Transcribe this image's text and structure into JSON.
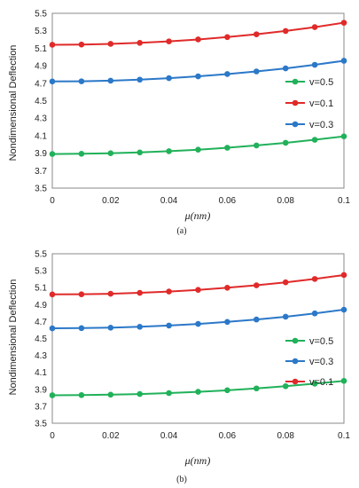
{
  "chart_data": [
    {
      "type": "line",
      "caption": "(a)",
      "ylabel": "Nondimensional Deflection",
      "xlabel": "μ(nm)",
      "x": [
        0,
        0.01,
        0.02,
        0.03,
        0.04,
        0.05,
        0.06,
        0.07,
        0.08,
        0.09,
        0.1
      ],
      "xticks": [
        "0",
        "0.02",
        "0.04",
        "0.06",
        "0.08",
        "0.1"
      ],
      "yticks": [
        "3.5",
        "3.7",
        "3.9",
        "4.1",
        "4.3",
        "4.5",
        "4.7",
        "4.9",
        "5.1",
        "5.3",
        "5.5"
      ],
      "xlim": [
        0,
        0.1
      ],
      "ylim": [
        3.5,
        5.5
      ],
      "grid": false,
      "legend_position": "right",
      "series": [
        {
          "name": "v=0.5",
          "color": "#21b15a",
          "values": [
            3.89,
            3.893,
            3.899,
            3.908,
            3.922,
            3.94,
            3.962,
            3.988,
            4.018,
            4.053,
            4.092
          ]
        },
        {
          "name": "v=0.1",
          "color": "#e02a2a",
          "values": [
            5.14,
            5.143,
            5.15,
            5.162,
            5.179,
            5.201,
            5.228,
            5.26,
            5.298,
            5.342,
            5.392
          ]
        },
        {
          "name": "v=0.3",
          "color": "#2b78c8",
          "values": [
            4.72,
            4.722,
            4.729,
            4.741,
            4.758,
            4.779,
            4.805,
            4.835,
            4.87,
            4.911,
            4.957
          ]
        }
      ]
    },
    {
      "type": "line",
      "caption": "(b)",
      "ylabel": "Nondimensional Deflection",
      "xlabel": "μ(nm)",
      "x": [
        0,
        0.01,
        0.02,
        0.03,
        0.04,
        0.05,
        0.06,
        0.07,
        0.08,
        0.09,
        0.1
      ],
      "xticks": [
        "0",
        "0.02",
        "0.04",
        "0.06",
        "0.08",
        "0.1"
      ],
      "yticks": [
        "3.5",
        "3.7",
        "3.9",
        "4.1",
        "4.3",
        "4.5",
        "4.7",
        "4.9",
        "5.1",
        "5.3",
        "5.5"
      ],
      "xlim": [
        0,
        0.1
      ],
      "ylim": [
        3.5,
        5.5
      ],
      "grid": false,
      "legend_position": "right",
      "series": [
        {
          "name": "v=0.5",
          "color": "#21b15a",
          "values": [
            3.83,
            3.832,
            3.837,
            3.845,
            3.856,
            3.871,
            3.889,
            3.911,
            3.937,
            3.967,
            4.0
          ]
        },
        {
          "name": "v=0.3",
          "color": "#2b78c8",
          "values": [
            4.62,
            4.622,
            4.628,
            4.638,
            4.653,
            4.672,
            4.696,
            4.724,
            4.757,
            4.796,
            4.84
          ]
        },
        {
          "name": "v=0.1",
          "color": "#e02a2a",
          "values": [
            5.02,
            5.022,
            5.028,
            5.039,
            5.054,
            5.074,
            5.099,
            5.128,
            5.163,
            5.203,
            5.249
          ]
        }
      ]
    }
  ]
}
